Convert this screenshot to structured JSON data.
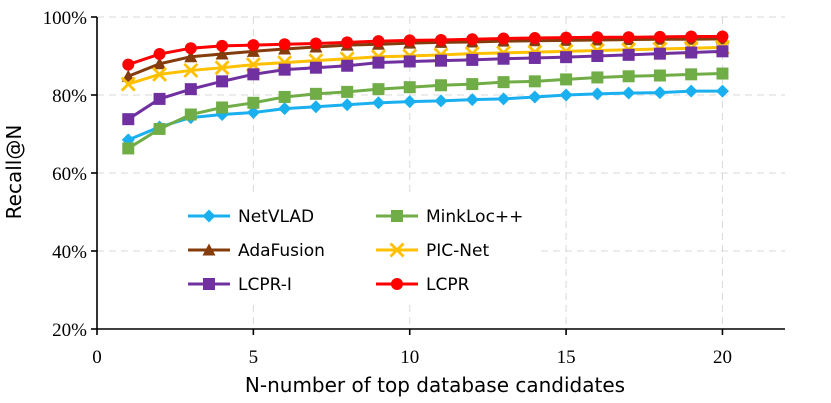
{
  "chart_data": {
    "type": "line",
    "title": "",
    "xlabel": "N-number of top database candidates",
    "ylabel": "Recall@N",
    "xlim": [
      0,
      22
    ],
    "ylim": [
      20,
      100
    ],
    "xticks": [
      0,
      5,
      10,
      15,
      20
    ],
    "yticks": [
      20,
      40,
      60,
      80,
      100
    ],
    "xtick_labels": [
      "0",
      "5",
      "10",
      "15",
      "20"
    ],
    "ytick_labels": [
      "20%",
      "40%",
      "60%",
      "80%",
      "100%"
    ],
    "grid": true,
    "legend_position": "lower-left inside plot, 2 columns",
    "x": [
      1,
      2,
      3,
      4,
      5,
      6,
      7,
      8,
      9,
      10,
      11,
      12,
      13,
      14,
      15,
      16,
      17,
      18,
      19,
      20
    ],
    "series": [
      {
        "name": "NetVLAD",
        "color": "#1ab0f0",
        "marker": "diamond",
        "values": [
          68.5,
          71.8,
          74.2,
          75.0,
          75.5,
          76.5,
          77.0,
          77.5,
          78.0,
          78.3,
          78.5,
          78.8,
          79.0,
          79.5,
          80.0,
          80.3,
          80.5,
          80.6,
          81.0,
          81.0
        ]
      },
      {
        "name": "MinkLoc++",
        "color": "#70ad47",
        "marker": "square",
        "values": [
          66.3,
          71.3,
          75.0,
          76.8,
          78.0,
          79.5,
          80.3,
          80.8,
          81.5,
          82.0,
          82.5,
          82.8,
          83.3,
          83.5,
          84.0,
          84.5,
          84.8,
          85.0,
          85.3,
          85.5
        ]
      },
      {
        "name": "AdaFusion",
        "color": "#843c0c",
        "marker": "triangle",
        "values": [
          84.8,
          88.0,
          89.8,
          90.5,
          91.2,
          91.8,
          92.3,
          92.8,
          93.0,
          93.3,
          93.5,
          93.6,
          93.8,
          93.9,
          94.0,
          94.1,
          94.2,
          94.3,
          94.3,
          94.4
        ]
      },
      {
        "name": "PIC-Net",
        "color": "#ffc000",
        "marker": "x",
        "values": [
          82.8,
          85.3,
          86.3,
          87.0,
          87.8,
          88.3,
          88.8,
          89.3,
          89.8,
          90.0,
          90.3,
          90.6,
          90.8,
          91.0,
          91.2,
          91.4,
          91.6,
          91.8,
          92.0,
          92.2
        ]
      },
      {
        "name": "LCPR-I",
        "color": "#7030a0",
        "marker": "square",
        "values": [
          73.8,
          79.0,
          81.5,
          83.5,
          85.3,
          86.5,
          87.0,
          87.5,
          88.3,
          88.6,
          88.8,
          89.0,
          89.3,
          89.5,
          89.7,
          90.0,
          90.3,
          90.6,
          90.9,
          91.2
        ]
      },
      {
        "name": "LCPR",
        "color": "#ff0000",
        "marker": "circle",
        "values": [
          87.8,
          90.5,
          92.0,
          92.6,
          92.8,
          93.0,
          93.2,
          93.5,
          93.8,
          94.0,
          94.1,
          94.3,
          94.5,
          94.6,
          94.7,
          94.8,
          94.8,
          94.9,
          95.0,
          95.0
        ]
      }
    ]
  }
}
